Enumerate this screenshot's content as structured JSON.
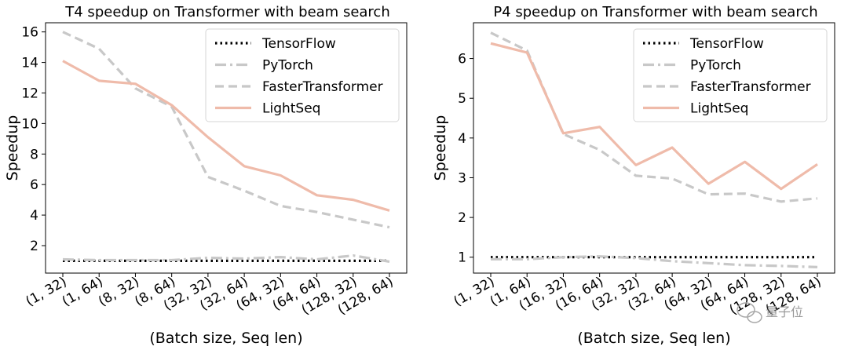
{
  "chart_data": [
    {
      "type": "line",
      "title": "T4 speedup on Transformer with beam search",
      "xlabel": "(Batch size, Seq len)",
      "ylabel": "Speedup",
      "categories": [
        "(1, 32)",
        "(1, 64)",
        "(8, 32)",
        "(8, 64)",
        "(32, 32)",
        "(32, 64)",
        "(64, 32)",
        "(64, 64)",
        "(128, 32)",
        "(128, 64)"
      ],
      "ylim": [
        0.2,
        16.6
      ],
      "yticks": [
        2,
        4,
        6,
        8,
        10,
        12,
        14,
        16
      ],
      "legend_position": "top-right",
      "grid": false,
      "series": [
        {
          "name": "TensorFlow",
          "style": "dotted",
          "color": "#000000",
          "values": [
            1,
            1,
            1,
            1,
            1,
            1,
            1,
            1,
            1,
            1
          ]
        },
        {
          "name": "PyTorch",
          "style": "dashdot",
          "color": "#c8c8c8",
          "values": [
            1.1,
            1.05,
            1.05,
            1.05,
            1.2,
            1.15,
            1.25,
            1.1,
            1.35,
            0.95
          ]
        },
        {
          "name": "FasterTransformer",
          "style": "dashed",
          "color": "#c8c8c8",
          "values": [
            16.0,
            14.9,
            12.3,
            11.1,
            6.5,
            5.6,
            4.6,
            4.2,
            3.7,
            3.2
          ]
        },
        {
          "name": "LightSeq",
          "style": "solid",
          "color": "#efbbaa",
          "values": [
            14.1,
            12.8,
            12.6,
            11.2,
            9.1,
            7.2,
            6.6,
            5.3,
            5.0,
            4.3
          ]
        }
      ]
    },
    {
      "type": "line",
      "title": "P4 speedup on Transformer with beam search",
      "xlabel": "(Batch size, Seq len)",
      "ylabel": "Speedup",
      "categories": [
        "(1, 32)",
        "(1, 64)",
        "(16, 32)",
        "(16, 64)",
        "(32, 32)",
        "(32, 64)",
        "(64, 32)",
        "(64, 64)",
        "(128, 32)",
        "(128, 64)"
      ],
      "ylim": [
        0.6,
        6.9
      ],
      "yticks": [
        1,
        2,
        3,
        4,
        5,
        6
      ],
      "legend_position": "top-right",
      "grid": false,
      "series": [
        {
          "name": "TensorFlow",
          "style": "dotted",
          "color": "#000000",
          "values": [
            1,
            1,
            1,
            1,
            1,
            1,
            1,
            1,
            1,
            1
          ]
        },
        {
          "name": "PyTorch",
          "style": "dashdot",
          "color": "#c8c8c8",
          "values": [
            0.95,
            0.95,
            1.0,
            1.02,
            0.98,
            0.9,
            0.85,
            0.8,
            0.78,
            0.75
          ]
        },
        {
          "name": "FasterTransformer",
          "style": "dashed",
          "color": "#c8c8c8",
          "values": [
            6.65,
            6.2,
            4.1,
            3.7,
            3.05,
            2.98,
            2.58,
            2.6,
            2.4,
            2.48
          ]
        },
        {
          "name": "LightSeq",
          "style": "solid",
          "color": "#efbbaa",
          "values": [
            6.38,
            6.15,
            4.12,
            4.28,
            3.32,
            3.76,
            2.85,
            3.4,
            2.72,
            3.34
          ]
        }
      ]
    }
  ],
  "watermark": "量子位"
}
